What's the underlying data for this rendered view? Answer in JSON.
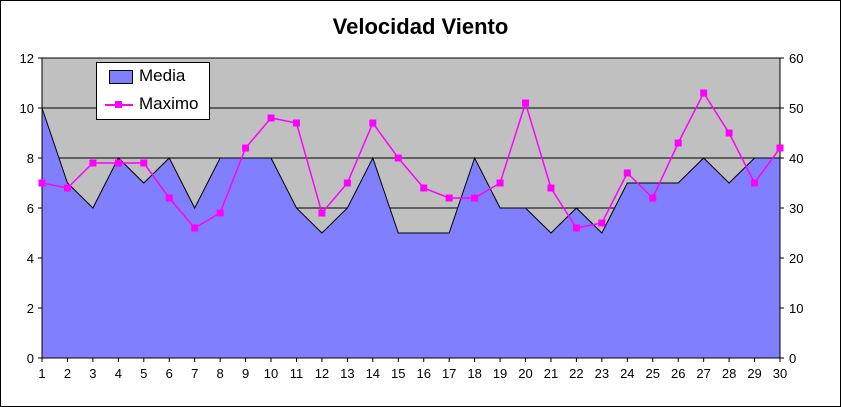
{
  "chart_data": {
    "type": "line",
    "title": "Velocidad Viento",
    "categories": [
      1,
      2,
      3,
      4,
      5,
      6,
      7,
      8,
      9,
      10,
      11,
      12,
      13,
      14,
      15,
      16,
      17,
      18,
      19,
      20,
      21,
      22,
      23,
      24,
      25,
      26,
      27,
      28,
      29,
      30
    ],
    "series": [
      {
        "name": "Media",
        "type": "area",
        "axis": "left",
        "color": "#8080ff",
        "values": [
          10,
          7,
          6,
          8,
          7,
          8,
          6,
          8,
          8,
          8,
          6,
          5,
          6,
          8,
          5,
          5,
          5,
          8,
          6,
          6,
          5,
          6,
          5,
          7,
          7,
          7,
          8,
          7,
          8,
          8
        ]
      },
      {
        "name": "Maximo",
        "type": "line",
        "axis": "right",
        "color": "#ff00ff",
        "values": [
          35,
          34,
          39,
          39,
          39,
          32,
          26,
          29,
          42,
          48,
          47,
          29,
          35,
          47,
          40,
          34,
          32,
          32,
          35,
          51,
          34,
          26,
          27,
          37,
          32,
          43,
          53,
          45,
          35,
          42
        ]
      }
    ],
    "y_left": {
      "min": 0,
      "max": 12,
      "step": 2
    },
    "y_right": {
      "min": 0,
      "max": 60,
      "step": 10
    },
    "plot_background": "#c0c0c0",
    "grid": true,
    "legend_position": "top-left"
  }
}
